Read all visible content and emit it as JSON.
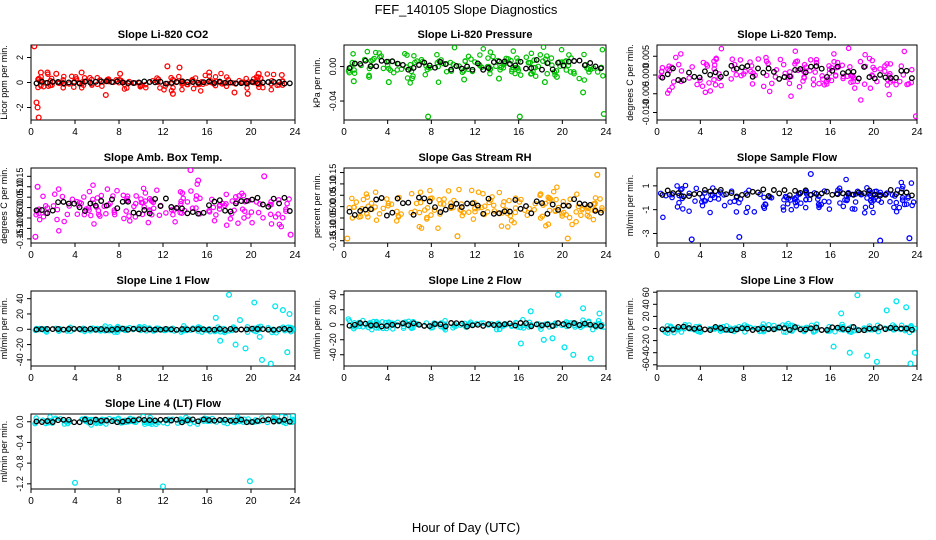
{
  "figure": {
    "title": "FEF_140105  Slope Diagnostics",
    "xlabel": "Hour of Day (UTC)"
  },
  "chart_data": [
    {
      "type": "scatter",
      "title": "Slope Li-820 CO2",
      "ylabel": "Licor ppm per min.",
      "xlim": [
        0,
        24
      ],
      "ylim": [
        -3.0,
        3.0
      ],
      "xticks": [
        0,
        4,
        8,
        12,
        16,
        20,
        24
      ],
      "yticks": [
        -2,
        0,
        2
      ],
      "yticklabels": [
        "-2",
        "0",
        "2"
      ],
      "colors": {
        "points": "#ff0000",
        "overlay": "#000000"
      },
      "series": [
        {
          "x": [
            0.3,
            0.5,
            0.6,
            0.7,
            0.9,
            1.5,
            2.3,
            4.6,
            6.8,
            8.1,
            12.4,
            12.9,
            13.5,
            16.2,
            18.5,
            19.7,
            20.7,
            22.8
          ],
          "y": [
            2.9,
            -1.6,
            -2.0,
            -2.8,
            0.8,
            0.8,
            0.7,
            0.8,
            -1.0,
            0.7,
            1.3,
            -0.9,
            1.2,
            0.8,
            -0.8,
            -0.9,
            0.7,
            0.6
          ]
        }
      ],
      "band": {
        "center": 0.0,
        "spread": 0.4
      },
      "overlay": {
        "center": 0.0,
        "spread": 0.1
      }
    },
    {
      "type": "scatter",
      "title": "Slope Li-820 Pressure",
      "ylabel": "kPa per min.",
      "xlim": [
        0,
        24
      ],
      "ylim": [
        -0.062,
        0.025
      ],
      "xticks": [
        0,
        4,
        8,
        12,
        16,
        20,
        24
      ],
      "yticks": [
        -0.04,
        0.0
      ],
      "yticklabels": [
        "-0.04",
        "0.00"
      ],
      "colors": {
        "points": "#00c000",
        "overlay": "#000000"
      },
      "series": [
        {
          "x": [
            0.9,
            2.3,
            4.1,
            7.7,
            11.0,
            14.2,
            16.1,
            18.4,
            19.5,
            21.9,
            23.8
          ],
          "y": [
            -0.017,
            -0.012,
            -0.018,
            -0.058,
            -0.015,
            -0.014,
            -0.058,
            -0.018,
            -0.012,
            -0.03,
            -0.055
          ]
        }
      ],
      "band": {
        "center": 0.002,
        "spread": 0.012
      },
      "overlay": {
        "center": 0.002,
        "spread": 0.006
      }
    },
    {
      "type": "scatter",
      "title": "Slope Li-820 Temp.",
      "ylabel": "degrees C per min.",
      "xlim": [
        0,
        24
      ],
      "ylim": [
        -0.012,
        0.008
      ],
      "xticks": [
        0,
        4,
        8,
        12,
        16,
        20,
        24
      ],
      "yticks": [
        -0.01,
        -0.005,
        0.0,
        0.005
      ],
      "yticklabels": [
        "-0.010",
        "-0.005",
        "0.000",
        "0.005"
      ],
      "colors": {
        "points": "#ff00ff",
        "overlay": "#000000"
      },
      "series": [
        {
          "x": [
            23.9
          ],
          "y": [
            -0.011
          ]
        }
      ],
      "band": {
        "center": 0.0005,
        "spread": 0.004
      },
      "overlay": {
        "center": 0.0005,
        "spread": 0.002
      }
    },
    {
      "type": "scatter",
      "title": "Slope Amb. Box Temp.",
      "ylabel": "degrees C per min.",
      "xlim": [
        0,
        24
      ],
      "ylim": [
        -0.17,
        0.19
      ],
      "xticks": [
        0,
        4,
        8,
        12,
        16,
        20,
        24
      ],
      "yticks": [
        -0.15,
        -0.1,
        -0.05,
        0.0,
        0.05,
        0.1,
        0.15
      ],
      "yticklabels": [
        "-0.15",
        "-0.10",
        "-0.05",
        "0.00",
        "0.05",
        "0.10",
        "0.15"
      ],
      "colors": {
        "points": "#ff00ff",
        "overlay": "#000000"
      },
      "series": [
        {
          "x": [
            0.4,
            0.6,
            14.5,
            15.2,
            23.6,
            21.2
          ],
          "y": [
            -0.14,
            0.1,
            0.18,
            0.13,
            -0.13,
            0.15
          ]
        }
      ],
      "band": {
        "center": 0.0,
        "spread": 0.07
      },
      "overlay": {
        "center": 0.01,
        "spread": 0.04
      }
    },
    {
      "type": "scatter",
      "title": "Slope Gas Stream RH",
      "ylabel": "percent per min.",
      "xlim": [
        0,
        24
      ],
      "ylim": [
        -0.16,
        0.17
      ],
      "xticks": [
        0,
        4,
        8,
        12,
        16,
        20,
        24
      ],
      "yticks": [
        -0.15,
        -0.1,
        -0.05,
        0.0,
        0.05,
        0.1,
        0.15
      ],
      "yticklabels": [
        "-0.15",
        "-0.10",
        "-0.05",
        "0.00",
        "0.05",
        "0.10",
        "0.15"
      ],
      "colors": {
        "points": "#ffa500",
        "overlay": "#000000"
      },
      "series": [
        {
          "x": [
            0.3,
            10.4,
            20.5,
            23.2
          ],
          "y": [
            -0.14,
            -0.13,
            -0.14,
            0.14
          ]
        }
      ],
      "band": {
        "center": 0.0,
        "spread": 0.06
      },
      "overlay": {
        "center": 0.0,
        "spread": 0.04
      }
    },
    {
      "type": "scatter",
      "title": "Slope Sample Flow",
      "ylabel": "ml/min per min.",
      "xlim": [
        0,
        24
      ],
      "ylim": [
        -3.8,
        2.5
      ],
      "xticks": [
        0,
        4,
        8,
        12,
        16,
        20,
        24
      ],
      "yticks": [
        -3,
        -1,
        1
      ],
      "yticklabels": [
        "-3",
        "-1",
        "1"
      ],
      "colors": {
        "points": "#0000ff",
        "overlay": "#000000"
      },
      "series": [
        {
          "x": [
            3.2,
            7.6,
            14.2,
            20.6,
            23.3
          ],
          "y": [
            -3.5,
            -3.3,
            2.0,
            -3.6,
            -3.4
          ]
        }
      ],
      "band": {
        "center": -0.1,
        "spread": 1.0
      },
      "overlay": {
        "center": 0.4,
        "spread": 0.3
      }
    },
    {
      "type": "scatter",
      "title": "Slope Line 1 Flow",
      "ylabel": "ml/min per min.",
      "xlim": [
        0,
        24
      ],
      "ylim": [
        -48,
        50
      ],
      "xticks": [
        0,
        4,
        8,
        12,
        16,
        20,
        24
      ],
      "yticks": [
        -40,
        -20,
        0,
        20,
        40
      ],
      "yticklabels": [
        "-40",
        "-20",
        "0",
        "20",
        "40"
      ],
      "colors": {
        "points": "#00e5ee",
        "overlay": "#000000"
      },
      "series": [
        {
          "x": [
            18.0,
            18.6,
            19.5,
            20.3,
            21.0,
            21.8,
            22.2,
            22.9,
            23.3,
            23.5,
            17.2,
            16.8,
            20.8,
            19.0
          ],
          "y": [
            45,
            -20,
            -25,
            35,
            -40,
            -45,
            30,
            25,
            -30,
            20,
            -15,
            15,
            -10,
            12
          ]
        }
      ],
      "band": {
        "center": 0.0,
        "spread": 3.0
      },
      "overlay": {
        "center": 0.0,
        "spread": 0.8
      }
    },
    {
      "type": "scatter",
      "title": "Slope Line 2 Flow",
      "ylabel": "ml/min per min.",
      "xlim": [
        0,
        24
      ],
      "ylim": [
        -55,
        45
      ],
      "xticks": [
        0,
        4,
        8,
        12,
        16,
        20,
        24
      ],
      "yticks": [
        -40,
        -20,
        0,
        20,
        40
      ],
      "yticklabels": [
        "-40",
        "-20",
        "0",
        "20",
        "40"
      ],
      "colors": {
        "points": "#00e5ee",
        "overlay": "#000000"
      },
      "series": [
        {
          "x": [
            16.2,
            17.1,
            18.3,
            19.6,
            20.2,
            21.0,
            21.9,
            22.6,
            23.4,
            19.1
          ],
          "y": [
            -25,
            18,
            -20,
            40,
            -30,
            -40,
            22,
            -45,
            15,
            -18
          ]
        }
      ],
      "band": {
        "center": 0.0,
        "spread": 5.0
      },
      "overlay": {
        "center": 0.0,
        "spread": 2.5
      }
    },
    {
      "type": "scatter",
      "title": "Slope Line 3 Flow",
      "ylabel": "ml/min per min.",
      "xlim": [
        0,
        24
      ],
      "ylim": [
        -62,
        62
      ],
      "xticks": [
        0,
        4,
        8,
        12,
        16,
        20,
        24
      ],
      "yticks": [
        -60,
        -40,
        -20,
        0,
        20,
        40,
        60
      ],
      "yticklabels": [
        "-60",
        "-40",
        "-20",
        "0",
        "20",
        "40",
        "60"
      ],
      "colors": {
        "points": "#00e5ee",
        "overlay": "#000000"
      },
      "series": [
        {
          "x": [
            16.3,
            17.0,
            17.8,
            18.5,
            19.4,
            20.3,
            21.2,
            22.1,
            23.0,
            23.4,
            23.8
          ],
          "y": [
            -30,
            25,
            -40,
            55,
            -45,
            -55,
            30,
            45,
            35,
            -58,
            -40
          ]
        }
      ],
      "band": {
        "center": 0.0,
        "spread": 5.0
      },
      "overlay": {
        "center": 0.0,
        "spread": 3.0
      }
    },
    {
      "type": "scatter",
      "title": "Slope Line 4 (LT) Flow",
      "ylabel": "ml/min per min.",
      "xlim": [
        0,
        24
      ],
      "ylim": [
        -1.3,
        0.15
      ],
      "xticks": [
        0,
        4,
        8,
        12,
        16,
        20,
        24
      ],
      "yticks": [
        -1.2,
        -0.8,
        -0.4,
        0.0
      ],
      "yticklabels": [
        "-1.2",
        "-0.8",
        "-0.4",
        "0.0"
      ],
      "colors": {
        "points": "#00e5ee",
        "overlay": "#000000"
      },
      "series": [
        {
          "x": [
            4.0,
            12.0,
            19.9,
            10.2,
            22.8,
            23.8
          ],
          "y": [
            -1.18,
            -1.25,
            -1.15,
            0.1,
            0.1,
            0.11
          ]
        }
      ],
      "band": {
        "center": 0.02,
        "spread": 0.05
      },
      "overlay": {
        "center": 0.02,
        "spread": 0.03
      }
    }
  ]
}
